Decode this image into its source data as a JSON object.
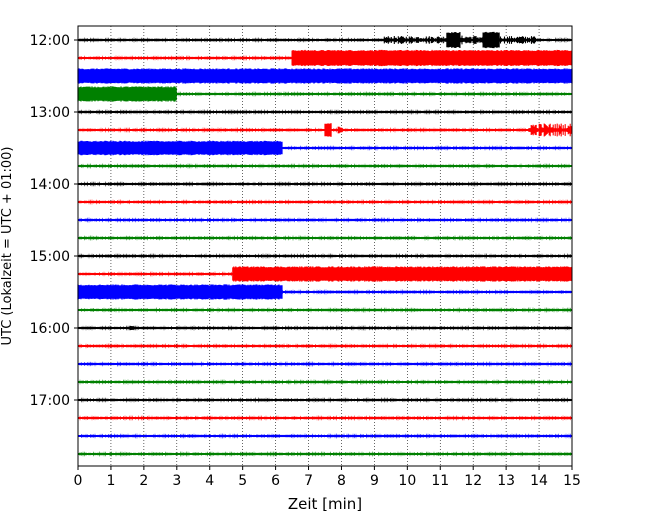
{
  "chart_data": {
    "type": "line",
    "title": "",
    "xlabel": "Zeit  [min]",
    "ylabel": "UTC (Lokalzeit = UTC + 01:00)",
    "xlim": [
      0,
      15
    ],
    "x_ticks": [
      "0",
      "1",
      "2",
      "3",
      "4",
      "5",
      "6",
      "7",
      "8",
      "9",
      "10",
      "11",
      "12",
      "13",
      "14",
      "15"
    ],
    "y_ticks": [
      "12:00",
      "13:00",
      "14:00",
      "15:00",
      "16:00",
      "17:00"
    ],
    "grid": "vertical dotted",
    "trace_interval_min": 15,
    "trace_colors": [
      "#000000",
      "#ff0000",
      "#0000ff",
      "#008000"
    ],
    "traces": [
      {
        "time": "12:00",
        "color": "#000000",
        "bursts": [
          [
            9.3,
            11.2,
            0.45
          ],
          [
            11.2,
            11.6,
            0.9
          ],
          [
            11.6,
            12.3,
            0.5
          ],
          [
            12.3,
            12.8,
            0.9
          ],
          [
            12.8,
            13.9,
            0.45
          ]
        ]
      },
      {
        "time": "12:15",
        "color": "#ff0000",
        "bursts": [
          [
            6.5,
            15,
            0.9
          ]
        ]
      },
      {
        "time": "12:30",
        "color": "#0000ff",
        "bursts": [
          [
            0,
            15,
            0.85
          ]
        ]
      },
      {
        "time": "12:45",
        "color": "#008000",
        "bursts": [
          [
            0,
            3.0,
            0.85
          ]
        ]
      },
      {
        "time": "13:00",
        "color": "#000000",
        "bursts": []
      },
      {
        "time": "13:15",
        "color": "#ff0000",
        "bursts": [
          [
            7.5,
            7.7,
            0.8
          ],
          [
            7.9,
            8.05,
            0.4
          ],
          [
            13.7,
            15,
            0.75
          ]
        ]
      },
      {
        "time": "13:30",
        "color": "#0000ff",
        "bursts": [
          [
            0,
            6.2,
            0.8
          ]
        ]
      },
      {
        "time": "13:45",
        "color": "#008000",
        "bursts": []
      },
      {
        "time": "14:00",
        "color": "#000000",
        "bursts": []
      },
      {
        "time": "14:15",
        "color": "#ff0000",
        "bursts": []
      },
      {
        "time": "14:30",
        "color": "#0000ff",
        "bursts": []
      },
      {
        "time": "14:45",
        "color": "#008000",
        "bursts": []
      },
      {
        "time": "15:00",
        "color": "#000000",
        "bursts": []
      },
      {
        "time": "15:15",
        "color": "#ff0000",
        "bursts": [
          [
            4.7,
            15,
            0.85
          ]
        ]
      },
      {
        "time": "15:30",
        "color": "#0000ff",
        "bursts": [
          [
            0,
            6.2,
            0.85
          ]
        ]
      },
      {
        "time": "15:45",
        "color": "#008000",
        "bursts": []
      },
      {
        "time": "16:00",
        "color": "#000000",
        "bursts": [
          [
            1.55,
            1.75,
            0.3
          ]
        ]
      },
      {
        "time": "16:15",
        "color": "#ff0000",
        "bursts": []
      },
      {
        "time": "16:30",
        "color": "#0000ff",
        "bursts": []
      },
      {
        "time": "16:45",
        "color": "#008000",
        "bursts": []
      },
      {
        "time": "17:00",
        "color": "#000000",
        "bursts": []
      },
      {
        "time": "17:15",
        "color": "#ff0000",
        "bursts": []
      },
      {
        "time": "17:30",
        "color": "#0000ff",
        "bursts": []
      },
      {
        "time": "17:45",
        "color": "#008000",
        "bursts": []
      }
    ]
  }
}
